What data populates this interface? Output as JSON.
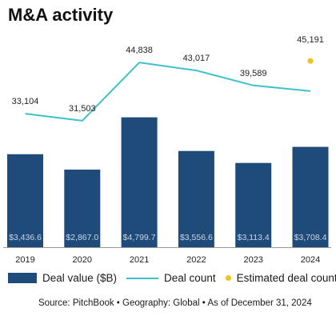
{
  "title": "M&A activity",
  "chart_data": {
    "type": "bar",
    "categories": [
      "2019",
      "2020",
      "2021",
      "2022",
      "2023",
      "2024"
    ],
    "series": [
      {
        "name": "Deal value ($B)",
        "type": "bar",
        "values": [
          3436.6,
          2867.0,
          4799.7,
          3556.6,
          3113.4,
          3708.4
        ],
        "labels": [
          "$3,436.6",
          "$2,867.0",
          "$4,799.7",
          "$3,556.6",
          "$3,113.4",
          "$3,708.4"
        ]
      },
      {
        "name": "Deal count",
        "type": "line",
        "values": [
          33104,
          31503,
          44838,
          43017,
          39589,
          38300
        ],
        "labels": [
          "33,104",
          "31,503",
          "44,838",
          "43,017",
          "39,589",
          null
        ]
      },
      {
        "name": "Estimated deal count",
        "type": "scatter",
        "x": "2024",
        "value": 45191,
        "label": "45,191"
      }
    ],
    "bar_ylim": [
      0,
      6800
    ],
    "line_ylim": [
      17000,
      50000
    ],
    "legend_position": "bottom",
    "grid": false,
    "colors": {
      "bar": "#1f4b7a",
      "line": "#3fc1c9",
      "estimate": "#f2c21b"
    }
  },
  "legend": {
    "bar": "Deal value ($B)",
    "line": "Deal count",
    "dot": "Estimated deal count"
  },
  "source": "Source: PitchBook  •  Geography: Global  •  As of December 31, 2024"
}
